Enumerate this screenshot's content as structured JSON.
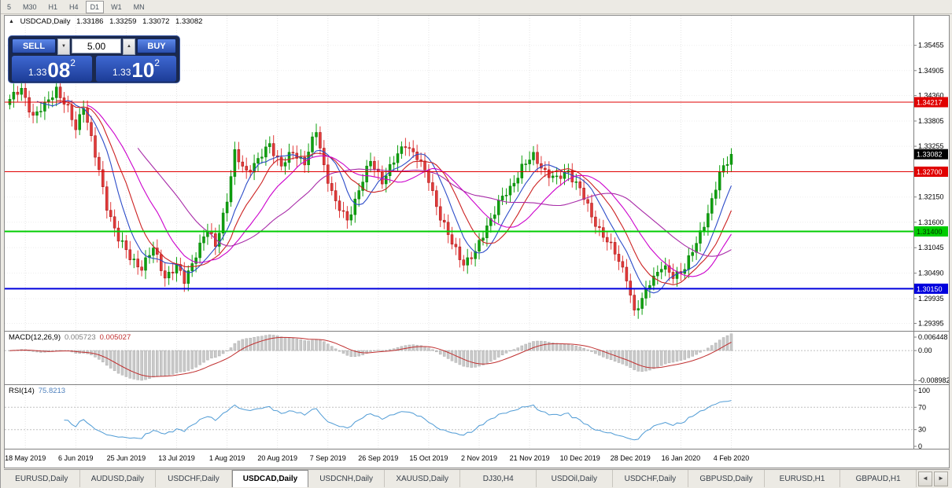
{
  "toolbar": {
    "timeframes": [
      "5",
      "M30",
      "H1",
      "H4",
      "D1",
      "W1",
      "MN"
    ],
    "active": "D1"
  },
  "icons": {
    "chart_marker": "▲",
    "stepper_up": "▲",
    "stepper_down": "▼",
    "tab_scroll_left": "◄",
    "tab_scroll_right": "►"
  },
  "header": {
    "symbol": "USDCAD,Daily",
    "open": "1.33186",
    "high": "1.33259",
    "low": "1.33072",
    "close": "1.33082"
  },
  "trade": {
    "sell_label": "SELL",
    "buy_label": "BUY",
    "volume": "5.00",
    "sell_price": {
      "small": "1.33",
      "big": "08",
      "sup": "2"
    },
    "buy_price": {
      "small": "1.33",
      "big": "10",
      "sup": "2"
    }
  },
  "price_axis": [
    "1.35455",
    "1.34905",
    "1.34360",
    "1.33805",
    "1.33255",
    "1.32700",
    "1.32150",
    "1.31600",
    "1.31045",
    "1.30490",
    "1.29935",
    "1.29395"
  ],
  "hlines": [
    {
      "price": 1.34217,
      "label": "1.34217",
      "color": "#e00000",
      "text_color": "#ffffff",
      "width": 1
    },
    {
      "price": 1.327,
      "label": "1.32700",
      "color": "#e00000",
      "text_color": "#ffffff",
      "width": 1
    },
    {
      "price": 1.314,
      "label": "1.31400",
      "color": "#00cc00",
      "text_color": "#003300",
      "width": 2
    },
    {
      "price": 1.3015,
      "label": "1.30150",
      "color": "#0000dd",
      "text_color": "#ffffff",
      "width": 2
    }
  ],
  "current_price": {
    "value": "1.33082",
    "bg": "#000000"
  },
  "dates": [
    "18 May 2019",
    "6 Jun 2019",
    "25 Jun 2019",
    "13 Jul 2019",
    "1 Aug 2019",
    "20 Aug 2019",
    "7 Sep 2019",
    "26 Sep 2019",
    "15 Oct 2019",
    "2 Nov 2019",
    "21 Nov 2019",
    "10 Dec 2019",
    "28 Dec 2019",
    "16 Jan 2020",
    "4 Feb 2020"
  ],
  "macd": {
    "name": "MACD(12,26,9)",
    "value": "0.005723",
    "signal": "0.005027",
    "axis_top": "0.006448",
    "axis_zero": "0.00",
    "axis_bottom": "-0.008982"
  },
  "rsi": {
    "name": "RSI(14)",
    "value": "75.8213",
    "axis": [
      "100",
      "70",
      "30",
      "0"
    ],
    "levels": [
      70,
      30
    ]
  },
  "tabs": [
    "EURUSD,Daily",
    "AUDUSD,Daily",
    "USDCHF,Daily",
    "USDCAD,Daily",
    "USDCNH,Daily",
    "XAUUSD,Daily",
    "DJ30,H4",
    "USDOil,Daily",
    "USDCHF,Daily",
    "GBPUSD,Daily",
    "EURUSD,H1",
    "GBPAUD,H1"
  ],
  "active_tab": 3,
  "chart_data": {
    "type": "candlestick",
    "symbol": "USDCAD",
    "timeframe": "Daily",
    "count": 187,
    "price_range": [
      1.2925,
      1.361
    ],
    "last_close": 1.33082,
    "label_indices": [
      4,
      17,
      30,
      43,
      56,
      69,
      82,
      95,
      108,
      121,
      134,
      147,
      160,
      173,
      186
    ],
    "close_anchors": [
      [
        0,
        1.3428
      ],
      [
        3,
        1.3448
      ],
      [
        6,
        1.3392
      ],
      [
        9,
        1.3412
      ],
      [
        12,
        1.3452
      ],
      [
        15,
        1.3405
      ],
      [
        17,
        1.3362
      ],
      [
        19,
        1.3418
      ],
      [
        22,
        1.3305
      ],
      [
        25,
        1.3195
      ],
      [
        28,
        1.3125
      ],
      [
        31,
        1.3082
      ],
      [
        34,
        1.3062
      ],
      [
        37,
        1.3102
      ],
      [
        40,
        1.3042
      ],
      [
        43,
        1.3062
      ],
      [
        45,
        1.3032
      ],
      [
        48,
        1.3092
      ],
      [
        51,
        1.3142
      ],
      [
        53,
        1.3112
      ],
      [
        56,
        1.3208
      ],
      [
        58,
        1.3308
      ],
      [
        61,
        1.3272
      ],
      [
        64,
        1.3292
      ],
      [
        67,
        1.3332
      ],
      [
        70,
        1.3282
      ],
      [
        73,
        1.3312
      ],
      [
        76,
        1.3292
      ],
      [
        79,
        1.3358
      ],
      [
        81,
        1.3282
      ],
      [
        84,
        1.3202
      ],
      [
        87,
        1.3162
      ],
      [
        90,
        1.3232
      ],
      [
        93,
        1.3292
      ],
      [
        96,
        1.3252
      ],
      [
        99,
        1.3292
      ],
      [
        102,
        1.3332
      ],
      [
        105,
        1.3302
      ],
      [
        108,
        1.3252
      ],
      [
        111,
        1.3172
      ],
      [
        114,
        1.3112
      ],
      [
        117,
        1.3072
      ],
      [
        120,
        1.3092
      ],
      [
        123,
        1.3152
      ],
      [
        126,
        1.3202
      ],
      [
        129,
        1.3232
      ],
      [
        132,
        1.3282
      ],
      [
        135,
        1.3302
      ],
      [
        138,
        1.3272
      ],
      [
        141,
        1.3252
      ],
      [
        144,
        1.3272
      ],
      [
        147,
        1.3232
      ],
      [
        150,
        1.3172
      ],
      [
        153,
        1.3132
      ],
      [
        156,
        1.3092
      ],
      [
        159,
        1.3042
      ],
      [
        161,
        1.2962
      ],
      [
        163,
        1.2988
      ],
      [
        165,
        1.3032
      ],
      [
        168,
        1.3062
      ],
      [
        171,
        1.3042
      ],
      [
        174,
        1.3062
      ],
      [
        177,
        1.3112
      ],
      [
        180,
        1.3182
      ],
      [
        183,
        1.3262
      ],
      [
        186,
        1.3308
      ]
    ],
    "ma": [
      {
        "period": 8,
        "color": "#2b4bc8"
      },
      {
        "period": 13,
        "color": "#cc2222"
      },
      {
        "period": 21,
        "color": "#cc00cc"
      },
      {
        "period": 34,
        "color": "#a82ba8"
      }
    ],
    "candle_up": "#0fa00f",
    "candle_down": "#e23b3b",
    "macd_hist_color": "#c9c9c9",
    "macd_signal_color": "#c03030",
    "rsi_color": "#4f9bd5"
  }
}
